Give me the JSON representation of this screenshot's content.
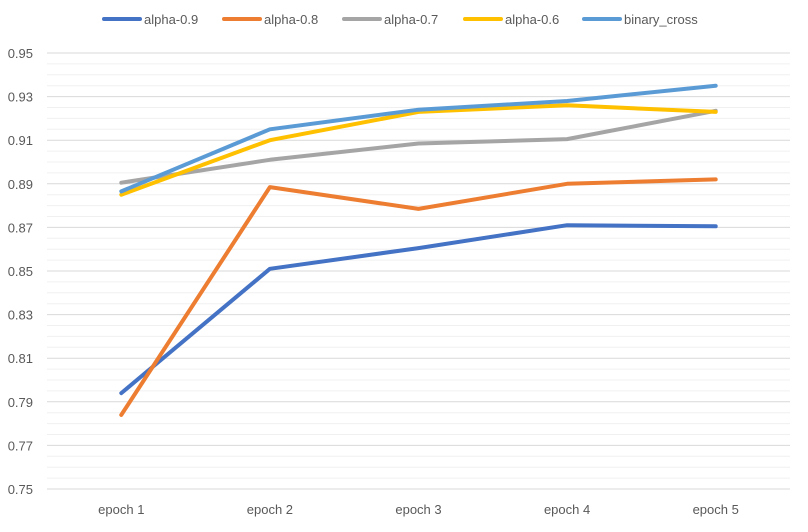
{
  "chart_data": {
    "type": "line",
    "title": "",
    "xlabel": "",
    "ylabel": "",
    "categories": [
      "epoch 1",
      "epoch 2",
      "epoch 3",
      "epoch 4",
      "epoch 5"
    ],
    "ylim": [
      0.75,
      0.95
    ],
    "yticks": [
      "0.75",
      "0.77",
      "0.79",
      "0.81",
      "0.83",
      "0.85",
      "0.87",
      "0.89",
      "0.91",
      "0.93",
      "0.95"
    ],
    "minor_grid_step": 0.005,
    "grid": true,
    "legend_position": "top",
    "series": [
      {
        "name": "alpha-0.9",
        "color": "#4472C4",
        "values": [
          0.794,
          0.851,
          0.8605,
          0.871,
          0.8705
        ]
      },
      {
        "name": "alpha-0.8",
        "color": "#ED7D31",
        "values": [
          0.784,
          0.8885,
          0.8785,
          0.89,
          0.892
        ]
      },
      {
        "name": "alpha-0.7",
        "color": "#A5A5A5",
        "values": [
          0.8905,
          0.901,
          0.9085,
          0.9105,
          0.9235
        ]
      },
      {
        "name": "alpha-0.6",
        "color": "#FFC000",
        "values": [
          0.885,
          0.91,
          0.923,
          0.926,
          0.923
        ]
      },
      {
        "name": "binary_cross",
        "color": "#5B9BD5",
        "values": [
          0.8865,
          0.915,
          0.924,
          0.928,
          0.935
        ]
      }
    ]
  }
}
